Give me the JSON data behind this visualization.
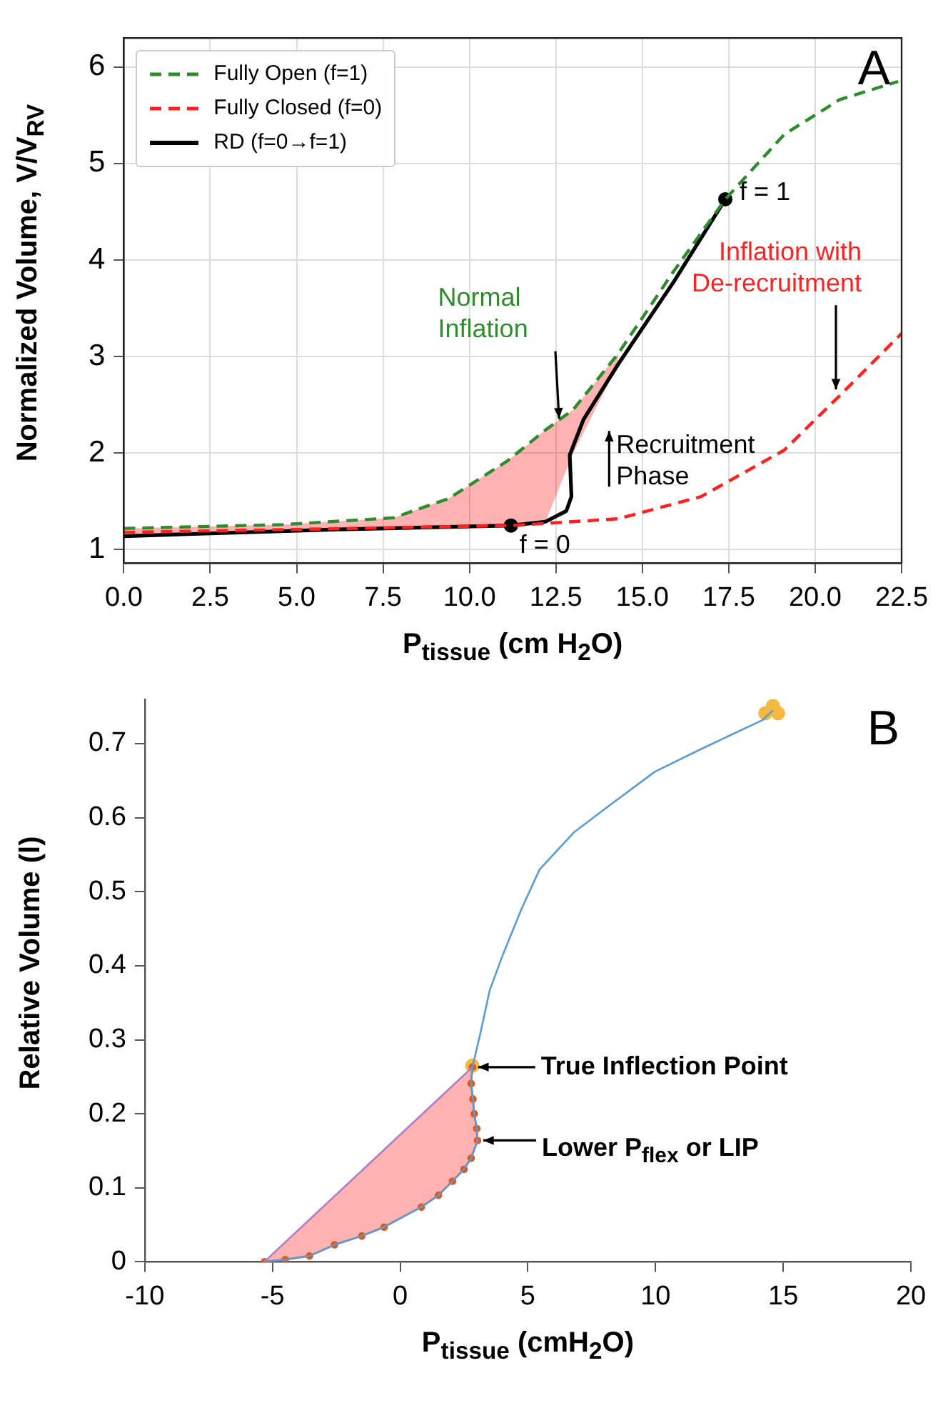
{
  "chart_data": [
    {
      "type": "line",
      "xlabel": "P$_{tissue}$ (cm H$_{2}$O)",
      "ylabel": "Normalized Volume, V/V$_{RV}$",
      "xlim": [
        0,
        22.5
      ],
      "ylim": [
        0.86,
        6.3
      ],
      "xticks": [
        {
          "value": 0,
          "label": "0.0"
        },
        2.5,
        {
          "value": 5,
          "label": "5.0"
        },
        7.5,
        {
          "value": 10,
          "label": "10.0"
        },
        12.5,
        {
          "value": 15,
          "label": "15.0"
        },
        17.5,
        {
          "value": 20,
          "label": "20.0"
        },
        22.5
      ],
      "yticks": [
        1,
        2,
        3,
        4,
        5,
        6
      ],
      "grid": true,
      "legend": "top left",
      "series": [
        {
          "name": "Fully Open (f=1)",
          "color": "#2e8b2e",
          "line_style": "dashed",
          "x": [
            0,
            4.6,
            7.8,
            9.4,
            11.1,
            12.2,
            13.0,
            14.3,
            15.9,
            17.4,
            19.1,
            20.7,
            22.4
          ],
          "values": [
            1.22,
            1.26,
            1.33,
            1.53,
            1.92,
            2.24,
            2.45,
            3.03,
            3.88,
            4.63,
            5.3,
            5.66,
            5.85
          ],
          "upper": [
            1.22,
            1.26,
            1.33,
            1.53,
            1.92,
            2.24,
            2.45,
            3.03,
            null,
            null,
            null,
            null,
            null
          ],
          "lower": [
            1.14,
            1.19,
            1.23,
            1.24,
            1.25,
            1.29,
            2.0,
            2.92,
            null,
            null,
            null,
            null,
            null
          ]
        },
        {
          "name": "Fully Closed (f=0)",
          "color": "#ff2020",
          "line_style": "dashed",
          "x": [
            0,
            5,
            11.2,
            14.3,
            16.7,
            19.1,
            20.75,
            22.5
          ],
          "values": [
            1.18,
            1.21,
            1.25,
            1.32,
            1.55,
            2.03,
            2.61,
            3.24
          ]
        },
        {
          "name": "RD (f=0→f=1)",
          "color": "#000000",
          "line_style": "solid",
          "x": [
            0,
            6.2,
            11.2,
            12.2,
            12.8,
            12.95,
            12.9,
            13.3,
            14.3,
            15.9,
            17.4
          ],
          "values": [
            1.14,
            1.21,
            1.25,
            1.29,
            1.4,
            1.55,
            1.98,
            2.35,
            2.92,
            3.77,
            4.63
          ]
        },
        {
          "type": "scatter",
          "color": "#000000",
          "marker": "circle",
          "x": [
            11.2,
            17.4
          ],
          "values": [
            1.25,
            4.63
          ]
        }
      ],
      "annotations": [
        "A",
        {
          "text": "f = 1",
          "x": 17.4,
          "y": 4.63
        },
        {
          "text": "f = 0",
          "x": 11.2,
          "y": 1.25
        },
        {
          "text": "Normal Inflation",
          "x": 12.6,
          "y": 2.3
        },
        {
          "text": "Inflation with De-recruitment",
          "x": 20.6,
          "y": 2.6
        },
        {
          "text": "Recruitment Phase",
          "x": 14.0,
          "y": 2.2
        }
      ]
    },
    {
      "type": "line",
      "xlabel": "P$_{tissue}$ (cmH$_{2}$O)",
      "ylabel": "Relative Volume (l)",
      "xlim": [
        -10,
        20
      ],
      "ylim": [
        0,
        0.76
      ],
      "xticks": [
        -10,
        -5,
        0,
        5,
        10,
        15,
        20
      ],
      "yticks": [
        0,
        0.1,
        0.2,
        0.3,
        0.4,
        0.5,
        0.6,
        0.7
      ],
      "series": [
        {
          "color": "#5b9bd5",
          "x": [
            -5.32,
            -4.5,
            -3.55,
            -2.57,
            -1.5,
            -0.63,
            0.83,
            1.5,
            2.05,
            2.5,
            2.78,
            3.03,
            3.0,
            2.9,
            2.85,
            2.78,
            2.83,
            3.15,
            3.5,
            4.0,
            4.73,
            5.46,
            6.8,
            8.14,
            9.97,
            11.8,
            14.2,
            14.6
          ],
          "values": [
            0,
            0.003,
            0.008,
            0.023,
            0.035,
            0.047,
            0.074,
            0.09,
            0.109,
            0.125,
            0.14,
            0.164,
            0.18,
            0.2,
            0.22,
            0.241,
            0.263,
            0.31,
            0.366,
            0.413,
            0.475,
            0.53,
            0.58,
            0.615,
            0.662,
            0.693,
            0.732,
            0.745
          ]
        },
        {
          "color": "#b07cc6",
          "x": [
            -5.32,
            2.83
          ],
          "values": [
            0,
            0.263
          ]
        },
        {
          "color": "#e0581a",
          "marker": "circle",
          "x": [
            -5.32,
            -4.5,
            -3.55,
            -2.57,
            -1.5,
            -0.63,
            0.83,
            1.5,
            2.05,
            2.5,
            2.78,
            3.03,
            3.0,
            2.9,
            2.85,
            2.78,
            2.83
          ],
          "values": [
            0,
            0.003,
            0.008,
            0.023,
            0.035,
            0.047,
            0.074,
            0.09,
            0.109,
            0.125,
            0.14,
            0.164,
            0.18,
            0.2,
            0.22,
            0.241,
            0.263
          ],
          "upper": [
            0,
            0.026,
            0.057,
            0.089,
            0.124,
            0.152,
            0.198,
            0.22,
            0.238,
            0.253,
            0.261,
            0.263,
            0.263,
            0.263,
            0.263,
            0.263,
            0.263
          ],
          "lower": [
            0,
            0.003,
            0.008,
            0.023,
            0.035,
            0.047,
            0.074,
            0.09,
            0.109,
            0.125,
            0.14,
            0.164,
            0.18,
            0.2,
            0.22,
            0.241,
            0.263
          ]
        },
        {
          "type": "scatter",
          "color": "#f5b942",
          "marker": "circle",
          "x": [
            14.3,
            14.6,
            14.8,
            2.83
          ],
          "values": [
            0.741,
            0.751,
            0.741,
            0.265
          ]
        }
      ],
      "annotations": [
        "B",
        {
          "text": "True Inflection Point",
          "x": 2.83,
          "y": 0.263
        },
        {
          "text": "Lower P$_{flex}$ or LIP",
          "x": 3.03,
          "y": 0.164
        }
      ]
    }
  ]
}
